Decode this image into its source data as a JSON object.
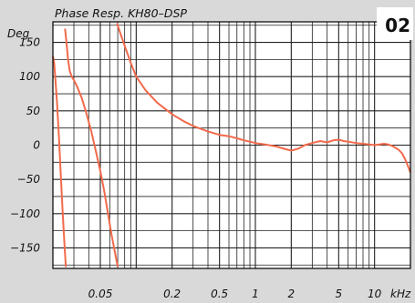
{
  "badge": "02",
  "chart_data": {
    "type": "line",
    "title": "Phase Resp. KH80–DSP",
    "ylabel": "Deg",
    "xlabel": "kHz",
    "x_scale": "log",
    "xlim": [
      0.02,
      20
    ],
    "ylim": [
      -180,
      180
    ],
    "x_ticks": [
      {
        "value": 0.05,
        "label": "0.05"
      },
      {
        "value": 0.2,
        "label": "0.2"
      },
      {
        "value": 0.5,
        "label": "0.5"
      },
      {
        "value": 1,
        "label": "1"
      },
      {
        "value": 2,
        "label": "2"
      },
      {
        "value": 5,
        "label": "5"
      },
      {
        "value": 10,
        "label": "10"
      }
    ],
    "y_ticks": [
      {
        "value": 150,
        "label": "150"
      },
      {
        "value": 100,
        "label": "100"
      },
      {
        "value": 50,
        "label": "50"
      },
      {
        "value": 0,
        "label": "0"
      },
      {
        "value": -50,
        "label": "−50"
      },
      {
        "value": -100,
        "label": "−100"
      },
      {
        "value": -150,
        "label": "−150"
      }
    ],
    "grid": true,
    "line_color": "#f26a4b",
    "series": [
      {
        "segments": [
          [
            [
              0.02,
              130
            ],
            [
              0.0205,
              120
            ],
            [
              0.021,
              95
            ],
            [
              0.0217,
              60
            ],
            [
              0.0225,
              10
            ],
            [
              0.0233,
              -45
            ],
            [
              0.0242,
              -100
            ],
            [
              0.025,
              -145
            ],
            [
              0.0257,
              -178
            ]
          ],
          [
            [
              0.0253,
              170
            ],
            [
              0.026,
              150
            ],
            [
              0.0268,
              125
            ],
            [
              0.0277,
              108
            ],
            [
              0.0288,
              100
            ],
            [
              0.03,
              95
            ],
            [
              0.032,
              85
            ],
            [
              0.035,
              68
            ],
            [
              0.038,
              48
            ],
            [
              0.042,
              20
            ],
            [
              0.046,
              -10
            ],
            [
              0.05,
              -38
            ],
            [
              0.054,
              -68
            ],
            [
              0.058,
              -100
            ],
            [
              0.062,
              -130
            ],
            [
              0.066,
              -155
            ],
            [
              0.07,
              -178
            ]
          ],
          [
            [
              0.069,
              178
            ],
            [
              0.073,
              165
            ],
            [
              0.08,
              145
            ],
            [
              0.09,
              120
            ],
            [
              0.1,
              100
            ],
            [
              0.12,
              80
            ],
            [
              0.15,
              62
            ],
            [
              0.2,
              45
            ],
            [
              0.25,
              35
            ],
            [
              0.3,
              28
            ],
            [
              0.4,
              20
            ],
            [
              0.5,
              15
            ],
            [
              0.6,
              13
            ],
            [
              0.7,
              10
            ],
            [
              0.8,
              7
            ],
            [
              0.9,
              5
            ],
            [
              1,
              3
            ],
            [
              1.2,
              1
            ],
            [
              1.5,
              -2
            ],
            [
              1.8,
              -6
            ],
            [
              2,
              -8
            ],
            [
              2.3,
              -5
            ],
            [
              2.6,
              0
            ],
            [
              3,
              3
            ],
            [
              3.5,
              6
            ],
            [
              4,
              4
            ],
            [
              4.5,
              7
            ],
            [
              5,
              8
            ],
            [
              5.5,
              6
            ],
            [
              6,
              5
            ],
            [
              7,
              3
            ],
            [
              8,
              2
            ],
            [
              9,
              1
            ],
            [
              10,
              0
            ],
            [
              11,
              1
            ],
            [
              12,
              2
            ],
            [
              13,
              1
            ],
            [
              14,
              -1
            ],
            [
              15,
              -4
            ],
            [
              16,
              -7
            ],
            [
              17,
              -12
            ],
            [
              18,
              -20
            ],
            [
              19,
              -30
            ],
            [
              20,
              -40
            ]
          ]
        ]
      }
    ]
  }
}
